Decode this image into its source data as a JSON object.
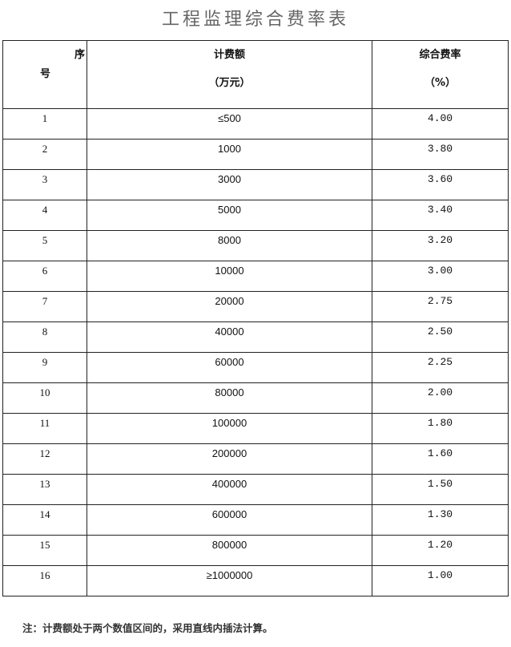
{
  "title": "工程监理综合费率表",
  "table": {
    "headers": {
      "index_top": "序",
      "index_bottom": "号",
      "amount_line1": "计费额",
      "amount_line2": "（万元）",
      "rate_line1": "综合费率",
      "rate_line2": "（%）"
    },
    "rows": [
      {
        "index": "1",
        "amount": "≤500",
        "rate": "4.00"
      },
      {
        "index": "2",
        "amount": "1000",
        "rate": "3.80"
      },
      {
        "index": "3",
        "amount": "3000",
        "rate": "3.60"
      },
      {
        "index": "4",
        "amount": "5000",
        "rate": "3.40"
      },
      {
        "index": "5",
        "amount": "8000",
        "rate": "3.20"
      },
      {
        "index": "6",
        "amount": "10000",
        "rate": "3.00"
      },
      {
        "index": "7",
        "amount": "20000",
        "rate": "2.75"
      },
      {
        "index": "8",
        "amount": "40000",
        "rate": "2.50"
      },
      {
        "index": "9",
        "amount": "60000",
        "rate": "2.25"
      },
      {
        "index": "10",
        "amount": "80000",
        "rate": "2.00"
      },
      {
        "index": "11",
        "amount": "100000",
        "rate": "1.80"
      },
      {
        "index": "12",
        "amount": "200000",
        "rate": "1.60"
      },
      {
        "index": "13",
        "amount": "400000",
        "rate": "1.50"
      },
      {
        "index": "14",
        "amount": "600000",
        "rate": "1.30"
      },
      {
        "index": "15",
        "amount": "800000",
        "rate": "1.20"
      },
      {
        "index": "16",
        "amount": "≥1000000",
        "rate": "1.00"
      }
    ]
  },
  "note": "注：计费额处于两个数值区间的，采用直线内插法计算。"
}
